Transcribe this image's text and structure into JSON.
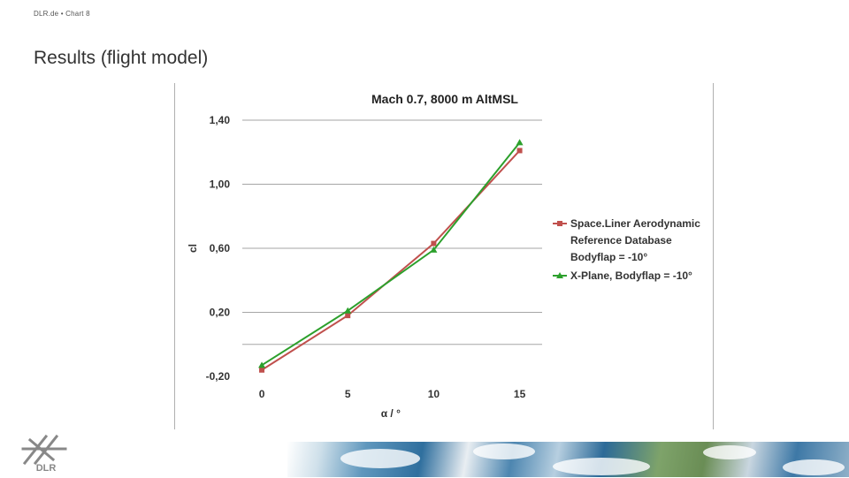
{
  "header": {
    "breadcrumb": "DLR.de  •  Chart 8"
  },
  "slide": {
    "title": "Results (flight model)"
  },
  "logo": {
    "text": "DLR",
    "icon": "dlr-logo-icon"
  },
  "chart_data": {
    "type": "line",
    "title": "Mach 0.7, 8000 m AltMSL",
    "xlabel": "α / °",
    "ylabel": "cl",
    "xlim": [
      0,
      15
    ],
    "ylim": [
      -0.2,
      1.4
    ],
    "x_ticks": [
      "0",
      "5",
      "10",
      "15"
    ],
    "y_ticks": [
      "1,40",
      "1,00",
      "0,60",
      "0,20",
      "-0,20"
    ],
    "gridlines": [
      1.4,
      1.0,
      0.6,
      0.2,
      0.0
    ],
    "legend_position": "right",
    "x": [
      0,
      5,
      10,
      15
    ],
    "series": [
      {
        "name": "Space.Liner Aerodynamic Reference Database Bodyflap = -10°",
        "legend_lines": [
          "Space.Liner Aerodynamic",
          "Reference Database",
          "Bodyflap = -10°"
        ],
        "values": [
          -0.16,
          0.18,
          0.63,
          1.21
        ],
        "color": "#c0504d",
        "marker": "square"
      },
      {
        "name": "X-Plane, Bodyflap = -10°",
        "legend_lines": [
          "X-Plane, Bodyflap = -10°"
        ],
        "values": [
          -0.13,
          0.21,
          0.59,
          1.26
        ],
        "color": "#2ca02c",
        "marker": "triangle"
      }
    ]
  }
}
